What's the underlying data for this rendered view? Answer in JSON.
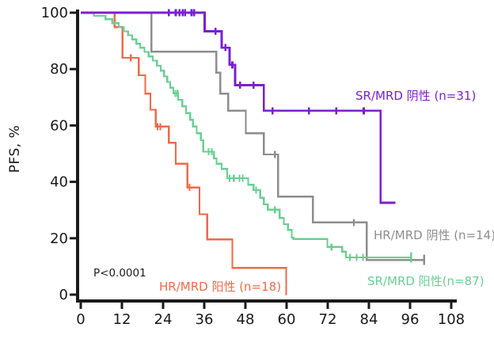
{
  "chart_data": {
    "type": "line",
    "subtype": "kaplan-meier-step",
    "title": "",
    "xlabel": "",
    "ylabel": "PFS, %",
    "xlim": [
      0,
      108
    ],
    "ylim": [
      0,
      100
    ],
    "xticks": [
      0,
      12,
      24,
      36,
      48,
      60,
      72,
      84,
      96,
      108
    ],
    "yticks": [
      0,
      20,
      40,
      60,
      80,
      100
    ],
    "grid": "off",
    "annotation": "P<0.0001",
    "axis_color": "#1a1a1a",
    "series": [
      {
        "key": "hr-mrd-positive",
        "name": "HR/MRD 阳性 (n=18)",
        "color": "#ef6a4a",
        "steps": [
          [
            0,
            100
          ],
          [
            9.9,
            94.9
          ],
          [
            12.2,
            84
          ],
          [
            16.9,
            77.8
          ],
          [
            18.8,
            71.3
          ],
          [
            20.3,
            65.6
          ],
          [
            21.9,
            59.6
          ],
          [
            25.7,
            53.9
          ],
          [
            27.7,
            46.4
          ],
          [
            31.1,
            38
          ],
          [
            34.6,
            28.5
          ],
          [
            36.9,
            19.6
          ],
          [
            44.2,
            9.5
          ],
          [
            59.9,
            0
          ]
        ],
        "x_end": 60,
        "censors": [
          [
            14.6,
            84
          ],
          [
            22.4,
            59.6
          ],
          [
            23.2,
            59.6
          ],
          [
            31.7,
            38
          ]
        ],
        "end_tick": null
      },
      {
        "key": "hr-mrd-negative",
        "name": "HR/MRD 阴性 (n=14)",
        "color": "#8d8d8d",
        "steps": [
          [
            0,
            100
          ],
          [
            20.6,
            86.2
          ],
          [
            39.5,
            78.7
          ],
          [
            40.7,
            71.3
          ],
          [
            43,
            65.2
          ],
          [
            48.1,
            57.2
          ],
          [
            53.4,
            49.7
          ],
          [
            57.5,
            34.8
          ],
          [
            67.7,
            25.6
          ],
          [
            83.4,
            12.3
          ]
        ],
        "x_end": 100.1,
        "censors": [
          [
            56.6,
            49.7
          ],
          [
            79.6,
            25.6
          ]
        ],
        "end_tick": [
          100.1,
          12.3
        ]
      },
      {
        "key": "sr-mrd-positive",
        "name": "SR/MRD 阳性(n=87)",
        "color": "#68cf93",
        "steps": [
          [
            0,
            100
          ],
          [
            3.8,
            98.9
          ],
          [
            7.2,
            97.7
          ],
          [
            9.2,
            96.3
          ],
          [
            11.1,
            94.8
          ],
          [
            12.5,
            93.4
          ],
          [
            13.8,
            92
          ],
          [
            15,
            90.5
          ],
          [
            16.2,
            89
          ],
          [
            17.3,
            87.6
          ],
          [
            18.6,
            86.1
          ],
          [
            19.8,
            84.5
          ],
          [
            21,
            83
          ],
          [
            22.2,
            81.2
          ],
          [
            23.3,
            79.4
          ],
          [
            24.3,
            77.4
          ],
          [
            25.2,
            75.4
          ],
          [
            26.1,
            73.4
          ],
          [
            27,
            71.4
          ],
          [
            28.4,
            69.1
          ],
          [
            29.6,
            66.8
          ],
          [
            30.7,
            64.4
          ],
          [
            31.9,
            62
          ],
          [
            32.7,
            59.6
          ],
          [
            33.8,
            57.2
          ],
          [
            35,
            54.8
          ],
          [
            35.7,
            50.7
          ],
          [
            38.8,
            48.3
          ],
          [
            39.6,
            46.4
          ],
          [
            41.1,
            44.6
          ],
          [
            42.7,
            41.3
          ],
          [
            48.8,
            39
          ],
          [
            50.4,
            37.1
          ],
          [
            52.3,
            34.3
          ],
          [
            53.4,
            32
          ],
          [
            54.5,
            30.1
          ],
          [
            58,
            27.2
          ],
          [
            59.2,
            25
          ],
          [
            60.4,
            23
          ],
          [
            61.5,
            20.2
          ],
          [
            62,
            19.7
          ],
          [
            71.9,
            16.9
          ],
          [
            76.2,
            15.2
          ],
          [
            77.3,
            13.2
          ]
        ],
        "x_end": 96.3,
        "censors": [
          [
            27.6,
            71.4
          ],
          [
            28.2,
            71.4
          ],
          [
            37.3,
            50.7
          ],
          [
            38.2,
            50.7
          ],
          [
            43.4,
            41.3
          ],
          [
            44.6,
            41.3
          ],
          [
            46.3,
            41.3
          ],
          [
            47.2,
            41.3
          ],
          [
            51.1,
            37.1
          ],
          [
            56.6,
            30.1
          ],
          [
            73.1,
            16.9
          ],
          [
            78.5,
            13.2
          ],
          [
            80.4,
            13.2
          ],
          [
            82.3,
            13.2
          ]
        ],
        "end_tick": [
          96.3,
          13.2
        ]
      },
      {
        "key": "sr-mrd-negative",
        "name": "SR/MRD 阴性 (n=31)",
        "color": "#7b1fd0",
        "steps": [
          [
            0,
            100
          ],
          [
            36.1,
            93.4
          ],
          [
            41.1,
            87.6
          ],
          [
            43.4,
            81.5
          ],
          [
            45,
            74.3
          ],
          [
            53.4,
            65.2
          ],
          [
            87.4,
            32.6
          ]
        ],
        "x_end": 91.7,
        "censors": [
          [
            25.7,
            100
          ],
          [
            27.7,
            100
          ],
          [
            28.8,
            100
          ],
          [
            29.7,
            100
          ],
          [
            30.4,
            100
          ],
          [
            32.3,
            100
          ],
          [
            33.1,
            100
          ],
          [
            39.3,
            93.4
          ],
          [
            42.2,
            87.6
          ],
          [
            44.2,
            81.5
          ],
          [
            46.4,
            74.3
          ],
          [
            50.4,
            74.3
          ],
          [
            55.9,
            65.2
          ],
          [
            66.5,
            65.2
          ],
          [
            74.5,
            65.2
          ],
          [
            82.5,
            65.2
          ]
        ],
        "end_tick": null
      }
    ]
  }
}
